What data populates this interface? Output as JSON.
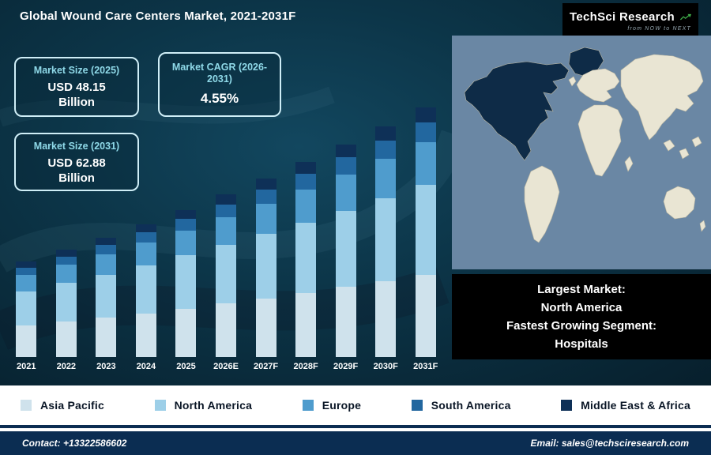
{
  "header": {
    "title": "Global Wound Care Centers Market, 2021-2031F",
    "logo": {
      "name": "TechSci Research",
      "tagline": "from NOW to NEXT"
    }
  },
  "info_boxes": [
    {
      "label": "Market Size (2025)",
      "value": "USD 48.15",
      "unit": "Billion"
    },
    {
      "label": "Market CAGR (2026-2031)",
      "value": "4.55%"
    },
    {
      "label": "Market Size (2031)",
      "value": "USD 62.88",
      "unit": "Billion"
    }
  ],
  "chart_data": {
    "type": "bar",
    "stacked": true,
    "title": "Global Wound Care Centers Market, 2021-2031F",
    "unit": "USD Billion",
    "categories": [
      "2021",
      "2022",
      "2023",
      "2024",
      "2025",
      "2026E",
      "2027F",
      "2028F",
      "2029F",
      "2030F",
      "2031F"
    ],
    "series": [
      {
        "name": "Asia Pacific",
        "key": "asia-pacific",
        "color": "#cfe2ec",
        "values": [
          13.43,
          13.99,
          14.59,
          15.21,
          15.89,
          16.61,
          17.37,
          18.16,
          18.98,
          19.85,
          20.75
        ]
      },
      {
        "name": "North America",
        "key": "north-america",
        "color": "#9dcfe8",
        "values": [
          14.65,
          15.26,
          15.91,
          16.6,
          17.33,
          18.12,
          18.95,
          19.81,
          20.71,
          21.65,
          22.64
        ]
      },
      {
        "name": "Europe",
        "key": "europe",
        "color": "#4f9ccd",
        "values": [
          6.92,
          7.21,
          7.51,
          7.84,
          8.19,
          8.56,
          8.95,
          9.35,
          9.78,
          10.22,
          10.69
        ]
      },
      {
        "name": "South America",
        "key": "south-america",
        "color": "#22679f",
        "values": [
          3.26,
          3.39,
          3.54,
          3.69,
          3.85,
          4.03,
          4.21,
          4.4,
          4.6,
          4.81,
          5.03
        ]
      },
      {
        "name": "Middle East & Africa",
        "key": "middle-east-africa",
        "color": "#0e3057",
        "values": [
          2.44,
          2.54,
          2.65,
          2.77,
          2.89,
          3.02,
          3.16,
          3.3,
          3.45,
          3.61,
          3.77
        ]
      }
    ],
    "totals": [
      40.7,
      42.4,
      44.2,
      46.11,
      48.15,
      50.34,
      52.64,
      55.02,
      57.52,
      60.14,
      62.88
    ],
    "ylim_visual": [
      27,
      64
    ],
    "xlabel": "",
    "ylabel": "",
    "grid": false,
    "legend_position": "bottom"
  },
  "map_panel": {
    "highlight": "North America",
    "note_lines": [
      "Largest Market:",
      "North America",
      "Fastest Growing Segment:",
      "Hospitals"
    ]
  },
  "footer": {
    "contact": "Contact: +13322586602",
    "email": "Email: sales@techsciresearch.com"
  },
  "colors": {
    "background_dark": "#0c3548",
    "info_border": "#cfeef7",
    "info_label": "#8fd9e8",
    "legend_bg": "#ffffff",
    "footer_bg": "#0b2d52",
    "map_sea": "#6a87a4",
    "map_land": "#e9e5d3",
    "map_highlight": "#0e2b47",
    "logo_green": "#3fae49"
  }
}
